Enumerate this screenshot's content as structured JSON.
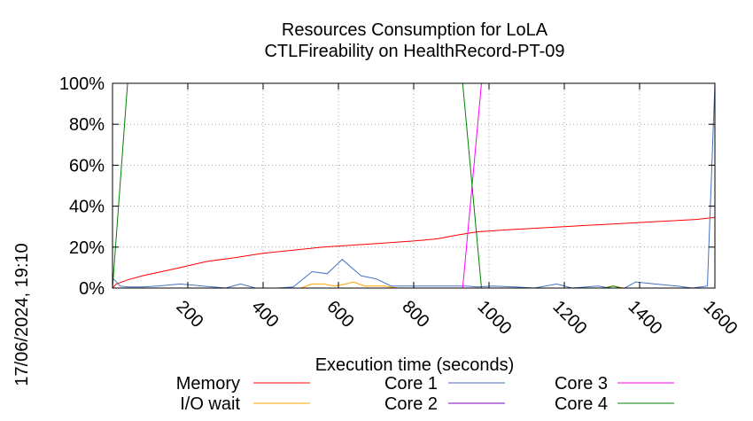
{
  "chart_data": {
    "type": "line",
    "title": "Resources Consumption for LoLA",
    "subtitle": "CTLFireability on HealthRecord-PT-09",
    "xlabel": "Execution time (seconds)",
    "ylabel": "",
    "xlim": [
      0,
      1600
    ],
    "ylim": [
      0,
      100
    ],
    "x_ticks": [
      200,
      400,
      600,
      800,
      1000,
      1200,
      1400,
      1600
    ],
    "x_tick_labels": [
      "200",
      "400",
      "600",
      "800",
      "1000",
      "1200",
      "1400",
      "1600"
    ],
    "y_ticks": [
      0,
      20,
      40,
      60,
      80,
      100
    ],
    "y_tick_labels": [
      "0%",
      "20%",
      "40%",
      "60%",
      "80%",
      "100%"
    ],
    "grid": true,
    "legend_position": "bottom",
    "timestamp": "17/06/2024, 19:10",
    "series": [
      {
        "name": "Memory",
        "color": "#ff0000",
        "points": [
          [
            0,
            0
          ],
          [
            10,
            2
          ],
          [
            40,
            4
          ],
          [
            80,
            6
          ],
          [
            130,
            8
          ],
          [
            180,
            10
          ],
          [
            250,
            13
          ],
          [
            330,
            15
          ],
          [
            400,
            17
          ],
          [
            480,
            18.5
          ],
          [
            560,
            20
          ],
          [
            640,
            21
          ],
          [
            720,
            22
          ],
          [
            800,
            23
          ],
          [
            860,
            24
          ],
          [
            920,
            26
          ],
          [
            970,
            27.5
          ],
          [
            1050,
            28.5
          ],
          [
            1150,
            29.5
          ],
          [
            1250,
            30.5
          ],
          [
            1350,
            31.5
          ],
          [
            1450,
            32.5
          ],
          [
            1550,
            33.5
          ],
          [
            1600,
            34.5
          ]
        ]
      },
      {
        "name": "I/O wait",
        "color": "#ffa500",
        "points": [
          [
            0,
            0
          ],
          [
            500,
            0
          ],
          [
            530,
            2
          ],
          [
            560,
            2
          ],
          [
            590,
            1
          ],
          [
            620,
            2
          ],
          [
            640,
            3
          ],
          [
            670,
            1
          ],
          [
            720,
            1
          ],
          [
            760,
            0
          ],
          [
            1300,
            0
          ],
          [
            1330,
            1
          ],
          [
            1360,
            0
          ],
          [
            1600,
            0
          ]
        ]
      },
      {
        "name": "Core 1",
        "color": "#4472c4",
        "points": [
          [
            0,
            5
          ],
          [
            20,
            1
          ],
          [
            40,
            0.5
          ],
          [
            80,
            0.5
          ],
          [
            120,
            1
          ],
          [
            180,
            2
          ],
          [
            240,
            1
          ],
          [
            300,
            0
          ],
          [
            340,
            2
          ],
          [
            380,
            0
          ],
          [
            440,
            0
          ],
          [
            480,
            0.5
          ],
          [
            530,
            8
          ],
          [
            570,
            7
          ],
          [
            610,
            14
          ],
          [
            660,
            6
          ],
          [
            700,
            4.5
          ],
          [
            740,
            1
          ],
          [
            800,
            1
          ],
          [
            940,
            1
          ],
          [
            970,
            0.5
          ],
          [
            1010,
            1
          ],
          [
            1070,
            0.5
          ],
          [
            1120,
            0
          ],
          [
            1180,
            2
          ],
          [
            1220,
            0
          ],
          [
            1290,
            1
          ],
          [
            1320,
            0
          ],
          [
            1360,
            0
          ],
          [
            1390,
            3
          ],
          [
            1440,
            2
          ],
          [
            1500,
            1
          ],
          [
            1540,
            0
          ],
          [
            1580,
            1
          ],
          [
            1600,
            100
          ]
        ]
      },
      {
        "name": "Core 2",
        "color": "#8000c0",
        "points": [
          [
            0,
            0
          ],
          [
            1600,
            0
          ]
        ]
      },
      {
        "name": "Core 3",
        "color": "#ff00ff",
        "points": [
          [
            0,
            0
          ],
          [
            930,
            0
          ],
          [
            980,
            100
          ],
          [
            1600,
            100
          ]
        ]
      },
      {
        "name": "Core 4",
        "color": "#008000",
        "points": [
          [
            0,
            0
          ],
          [
            40,
            100
          ],
          [
            930,
            100
          ],
          [
            980,
            0
          ],
          [
            1310,
            0
          ],
          [
            1330,
            1
          ],
          [
            1350,
            0
          ],
          [
            1600,
            0
          ]
        ]
      }
    ]
  }
}
